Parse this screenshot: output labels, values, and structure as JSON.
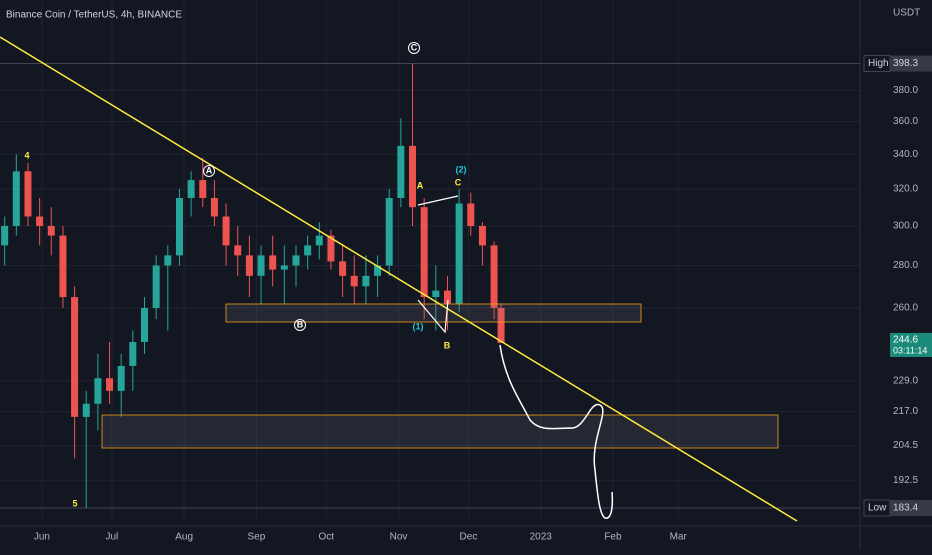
{
  "chart_data": {
    "type": "candlestick",
    "title": "Binance Coin / TetherUS, 4h, BINANCE",
    "currency": "USDT",
    "yscale": "log",
    "grid": true,
    "up_color": "#26a69a",
    "down_color": "#ef5350",
    "x": [
      15,
      20,
      25,
      30,
      35,
      40,
      45,
      50,
      55,
      60,
      65,
      70,
      75,
      80,
      85,
      90,
      95,
      100,
      105,
      110,
      115,
      120,
      125,
      130,
      135,
      140,
      145,
      150,
      155,
      160,
      165,
      170,
      175,
      180,
      185,
      190,
      195,
      200,
      205,
      210,
      215,
      220,
      225,
      228
    ],
    "open": [
      290,
      300,
      330,
      305,
      300,
      295,
      265,
      215,
      220,
      230,
      225,
      235,
      245,
      260,
      280,
      285,
      315,
      325,
      315,
      305,
      290,
      285,
      275,
      285,
      278,
      280,
      285,
      290,
      295,
      282,
      275,
      270,
      275,
      280,
      315,
      345,
      310,
      265,
      268,
      262,
      312,
      300,
      290,
      260
    ],
    "high": [
      305,
      340,
      335,
      315,
      310,
      300,
      270,
      225,
      240,
      245,
      240,
      250,
      265,
      285,
      290,
      320,
      330,
      338,
      325,
      312,
      300,
      295,
      290,
      295,
      290,
      290,
      295,
      302,
      298,
      290,
      285,
      285,
      285,
      320,
      362,
      398.3,
      315,
      280,
      275,
      320,
      318,
      302,
      292,
      262
    ],
    "low": [
      280,
      295,
      300,
      290,
      285,
      260,
      200,
      183.4,
      210,
      220,
      215,
      225,
      240,
      255,
      250,
      280,
      305,
      310,
      300,
      280,
      275,
      265,
      262,
      270,
      262,
      270,
      278,
      283,
      278,
      265,
      262,
      262,
      265,
      275,
      310,
      300,
      255,
      250,
      250,
      258,
      295,
      280,
      255,
      244.6
    ],
    "close": [
      300,
      330,
      305,
      300,
      295,
      265,
      215,
      220,
      230,
      225,
      235,
      245,
      260,
      280,
      285,
      315,
      325,
      315,
      305,
      290,
      285,
      275,
      285,
      278,
      280,
      285,
      290,
      295,
      282,
      275,
      270,
      275,
      280,
      315,
      345,
      310,
      265,
      268,
      262,
      312,
      300,
      290,
      260,
      244.6
    ],
    "xlim": [
      13,
      382
    ],
    "xticks": [
      {
        "value": 31,
        "label": "Jun"
      },
      {
        "value": 61,
        "label": "Jul"
      },
      {
        "value": 92,
        "label": "Aug"
      },
      {
        "value": 123,
        "label": "Sep"
      },
      {
        "value": 153,
        "label": "Oct"
      },
      {
        "value": 184,
        "label": "Nov"
      },
      {
        "value": 214,
        "label": "Dec"
      },
      {
        "value": 245,
        "label": "2023"
      },
      {
        "value": 276,
        "label": "Feb"
      },
      {
        "value": 304,
        "label": "Mar"
      }
    ],
    "ylim": [
      179.6,
      445
    ],
    "yticks": [
      {
        "value": 380,
        "label": "380.0"
      },
      {
        "value": 360,
        "label": "360.0"
      },
      {
        "value": 340,
        "label": "340.0"
      },
      {
        "value": 320,
        "label": "320.0"
      },
      {
        "value": 300,
        "label": "300.0"
      },
      {
        "value": 280,
        "label": "280.0"
      },
      {
        "value": 260,
        "label": "260.0"
      },
      {
        "value": 229,
        "label": "229.0"
      },
      {
        "value": 217,
        "label": "217.0"
      },
      204.5,
      192.5
    ],
    "high_marker": {
      "label": "High",
      "value": 398.3
    },
    "low_marker": {
      "label": "Low",
      "value": 183.4
    },
    "last_price": {
      "value": 244.6,
      "countdown": "03:11:14"
    },
    "annotations": [
      "4",
      "5",
      "A",
      "B",
      "C",
      "A",
      "C",
      "(2)",
      "(1)",
      "B"
    ]
  }
}
